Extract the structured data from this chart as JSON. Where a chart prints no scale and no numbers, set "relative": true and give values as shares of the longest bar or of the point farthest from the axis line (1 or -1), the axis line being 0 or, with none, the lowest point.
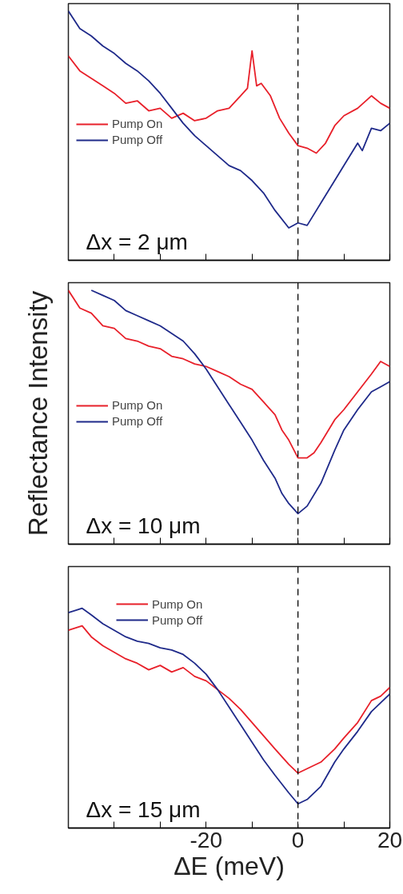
{
  "chart_data": [
    {
      "type": "line",
      "relative": true,
      "annotations": [
        "Δx = 2 μm"
      ],
      "xlim": [
        -50,
        20
      ],
      "xticks": [
        {
          "value": -40,
          "label": null
        },
        {
          "value": -30,
          "label": null
        },
        -20,
        {
          "value": -10,
          "label": null
        },
        0,
        {
          "value": 10,
          "label": null
        },
        20
      ],
      "tick_labels": false,
      "legend": "left",
      "ref_lines": [
        {
          "axis": "x",
          "value": 0,
          "line_style": "dashed",
          "color": "#000000"
        }
      ],
      "series": [
        {
          "name": "Pump On",
          "color": "#e8202a",
          "x": [
            -50,
            -47.5,
            -45,
            -42.5,
            -40,
            -37.5,
            -35,
            -32.5,
            -30,
            -27.5,
            -25,
            -22.5,
            -20,
            -17.5,
            -15,
            -12.5,
            -11,
            -10,
            -9,
            -8,
            -6,
            -4,
            -2,
            0,
            2,
            4,
            6,
            8,
            10,
            13,
            16,
            18,
            20
          ],
          "values": [
            0.82,
            0.76,
            0.73,
            0.7,
            0.67,
            0.63,
            0.64,
            0.6,
            0.61,
            0.57,
            0.59,
            0.56,
            0.57,
            0.6,
            0.61,
            0.66,
            0.69,
            0.84,
            0.7,
            0.71,
            0.66,
            0.57,
            0.51,
            0.46,
            0.45,
            0.43,
            0.47,
            0.54,
            0.58,
            0.61,
            0.66,
            0.63,
            0.61
          ]
        },
        {
          "name": "Pump Off",
          "color": "#1f2a8a",
          "x": [
            -50,
            -47.5,
            -45,
            -42.5,
            -40,
            -37.5,
            -35,
            -32.5,
            -30,
            -27.5,
            -25,
            -22.5,
            -20,
            -17.5,
            -15,
            -12.5,
            -10,
            -7.5,
            -5,
            -2,
            0,
            2,
            5,
            8,
            10,
            13,
            14,
            16,
            18,
            20
          ],
          "values": [
            1.0,
            0.93,
            0.9,
            0.86,
            0.83,
            0.79,
            0.76,
            0.72,
            0.67,
            0.61,
            0.55,
            0.5,
            0.46,
            0.42,
            0.38,
            0.36,
            0.32,
            0.27,
            0.2,
            0.13,
            0.15,
            0.14,
            0.23,
            0.32,
            0.38,
            0.47,
            0.44,
            0.53,
            0.52,
            0.55
          ]
        }
      ]
    },
    {
      "type": "line",
      "relative": true,
      "ylabel": "Reflectance Intensity",
      "annotations": [
        "Δx = 10 μm"
      ],
      "xlim": [
        -50,
        20
      ],
      "xticks": [
        {
          "value": -40,
          "label": null
        },
        {
          "value": -30,
          "label": null
        },
        -20,
        {
          "value": -10,
          "label": null
        },
        0,
        {
          "value": 10,
          "label": null
        },
        20
      ],
      "tick_labels": false,
      "legend": "left",
      "ref_lines": [
        {
          "axis": "x",
          "value": 0,
          "line_style": "dashed",
          "color": "#000000"
        }
      ],
      "series": [
        {
          "name": "Pump On",
          "color": "#e8202a",
          "x": [
            -50,
            -47.5,
            -45,
            -42.5,
            -40,
            -37.5,
            -35,
            -32.5,
            -30,
            -27.5,
            -25,
            -22.5,
            -20,
            -17.5,
            -15,
            -12.5,
            -10,
            -7.5,
            -5,
            -3.5,
            -2,
            0,
            2,
            3.5,
            5,
            8,
            10,
            13,
            16,
            18,
            20
          ],
          "values": [
            1.0,
            0.93,
            0.91,
            0.86,
            0.85,
            0.81,
            0.8,
            0.78,
            0.77,
            0.74,
            0.73,
            0.71,
            0.7,
            0.68,
            0.66,
            0.63,
            0.61,
            0.56,
            0.51,
            0.45,
            0.41,
            0.34,
            0.34,
            0.36,
            0.4,
            0.49,
            0.53,
            0.6,
            0.67,
            0.72,
            0.7
          ]
        },
        {
          "name": "Pump Off",
          "color": "#1f2a8a",
          "x": [
            -45,
            -42.5,
            -40,
            -37.5,
            -35,
            -32.5,
            -30,
            -27.5,
            -25,
            -22.5,
            -20,
            -17.5,
            -15,
            -12.5,
            -10,
            -7.5,
            -5,
            -3.5,
            -2,
            0,
            2,
            5,
            8,
            10,
            13,
            16,
            18,
            20
          ],
          "values": [
            1.0,
            0.98,
            0.96,
            0.92,
            0.9,
            0.88,
            0.86,
            0.83,
            0.8,
            0.75,
            0.69,
            0.62,
            0.55,
            0.48,
            0.41,
            0.33,
            0.26,
            0.2,
            0.16,
            0.12,
            0.15,
            0.24,
            0.37,
            0.45,
            0.53,
            0.6,
            0.62,
            0.64
          ]
        }
      ]
    },
    {
      "type": "line",
      "relative": true,
      "xlabel": "ΔE (meV)",
      "annotations": [
        "Δx = 15 μm"
      ],
      "xlim": [
        -50,
        20
      ],
      "xticks": [
        {
          "value": -40,
          "label": null
        },
        {
          "value": -30,
          "label": null
        },
        -20,
        {
          "value": -10,
          "label": null
        },
        0,
        {
          "value": 10,
          "label": null
        },
        20
      ],
      "tick_labels": "x",
      "legend": "top",
      "ref_lines": [
        {
          "axis": "x",
          "value": 0,
          "line_style": "dashed",
          "color": "#000000"
        }
      ],
      "series": [
        {
          "name": "Pump On",
          "color": "#e8202a",
          "x": [
            -50,
            -47,
            -45,
            -42.5,
            -40,
            -37.5,
            -35,
            -32.5,
            -30,
            -27.5,
            -25,
            -22.5,
            -20,
            -17.5,
            -15,
            -12.5,
            -10,
            -7.5,
            -5,
            -2,
            0,
            2,
            5,
            8,
            10,
            13,
            16,
            18,
            20
          ],
          "values": [
            0.9,
            0.92,
            0.87,
            0.83,
            0.8,
            0.77,
            0.75,
            0.72,
            0.74,
            0.71,
            0.73,
            0.69,
            0.67,
            0.63,
            0.59,
            0.54,
            0.48,
            0.42,
            0.36,
            0.29,
            0.25,
            0.27,
            0.3,
            0.36,
            0.41,
            0.48,
            0.58,
            0.6,
            0.64
          ]
        },
        {
          "name": "Pump Off",
          "color": "#1f2a8a",
          "x": [
            -50,
            -47,
            -45,
            -42.5,
            -40,
            -37.5,
            -35,
            -32.5,
            -30,
            -27.5,
            -25,
            -22.5,
            -20,
            -17.5,
            -15,
            -12.5,
            -10,
            -7.5,
            -5,
            -2,
            0,
            2,
            5,
            8,
            10,
            13,
            16,
            18,
            20
          ],
          "values": [
            0.98,
            1.0,
            0.97,
            0.93,
            0.9,
            0.87,
            0.85,
            0.84,
            0.82,
            0.81,
            0.79,
            0.75,
            0.7,
            0.63,
            0.55,
            0.47,
            0.39,
            0.31,
            0.24,
            0.16,
            0.11,
            0.13,
            0.19,
            0.3,
            0.36,
            0.44,
            0.53,
            0.57,
            0.61
          ]
        }
      ]
    }
  ]
}
